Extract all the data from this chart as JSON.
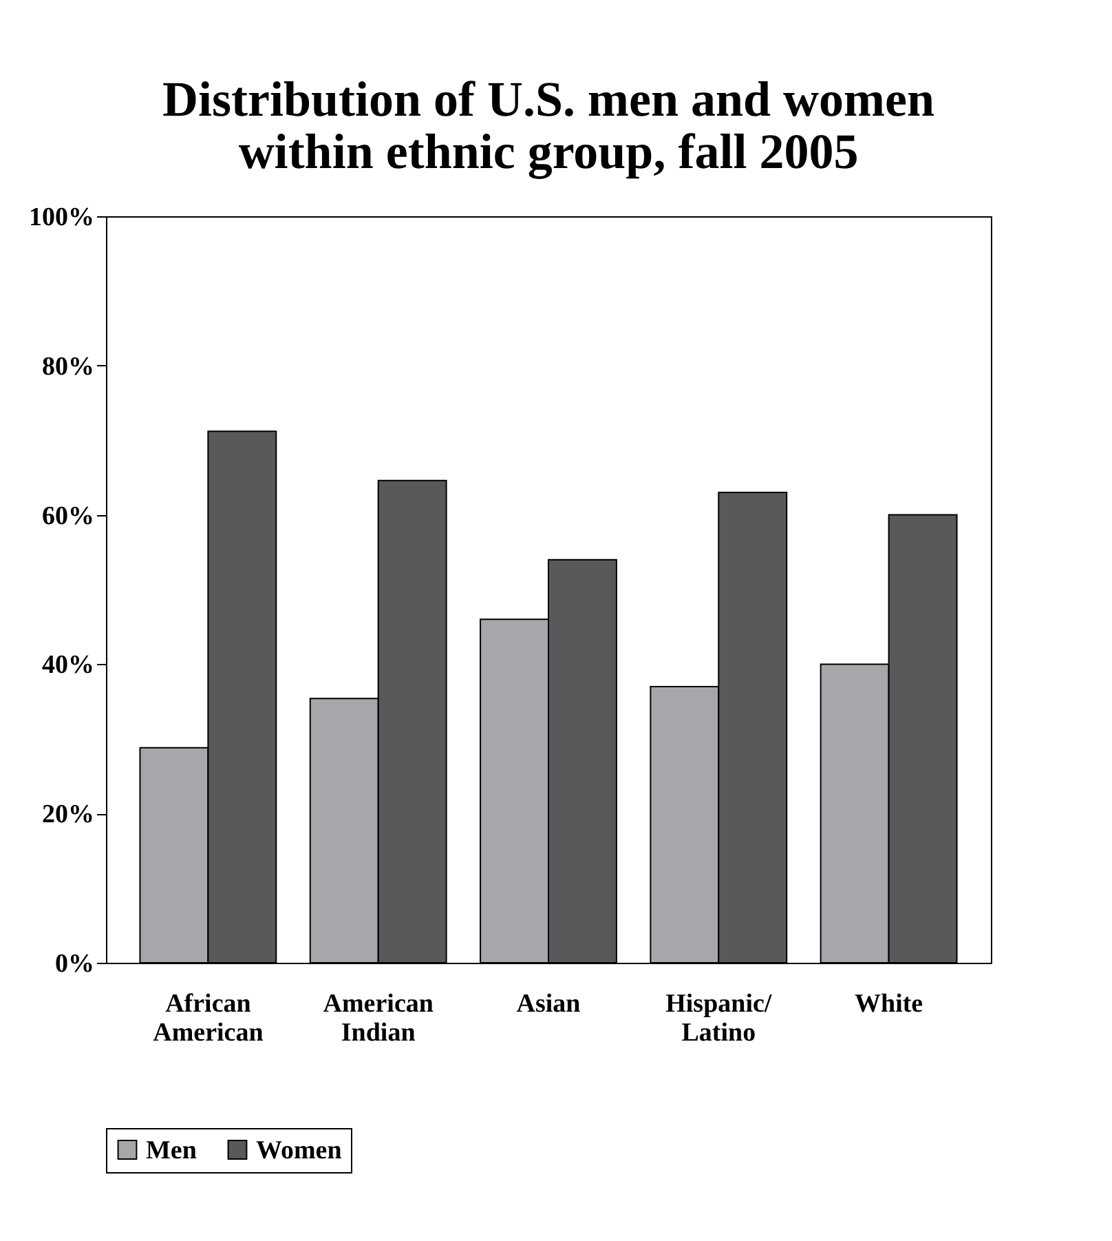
{
  "chart_data": {
    "type": "bar",
    "title": [
      "Distribution of U.S. men and women",
      "within ethnic group, fall 2005"
    ],
    "categories": [
      "African American",
      "American Indian",
      "Asian",
      "Hispanic/Latino",
      "White"
    ],
    "series": [
      {
        "name": "Men",
        "color": "#a6a7ab",
        "values": [
          28.8,
          35.4,
          46.0,
          37.0,
          40.0
        ]
      },
      {
        "name": "Women",
        "color": "#58595b",
        "values": [
          71.2,
          64.6,
          54.0,
          63.0,
          60.0
        ]
      }
    ],
    "ylim": [
      0,
      100
    ],
    "yticks": [
      {
        "value": 0,
        "label": "0%"
      },
      {
        "value": 20,
        "label": "20%"
      },
      {
        "value": 40,
        "label": "40%"
      },
      {
        "value": 60,
        "label": "60%"
      },
      {
        "value": 80,
        "label": "80%"
      },
      {
        "value": 100,
        "label": "100%"
      }
    ],
    "grid": false,
    "legend": "bottom"
  }
}
